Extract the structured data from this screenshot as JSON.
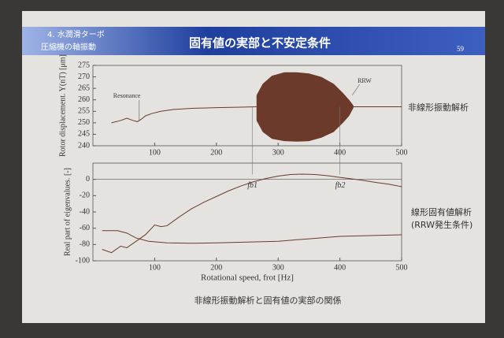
{
  "header": {
    "section": [
      "4. 水潤滑ターボ",
      "圧縮機の軸振動"
    ],
    "title": "固有値の実部と不安定条件",
    "page": "59"
  },
  "side_labels": [
    "非線形振動解析",
    "線形固有値解析",
    "(RRW発生条件)"
  ],
  "caption": "非線形振動解析と固有値の実部の関係",
  "chart_data": [
    {
      "type": "line",
      "y_label": "Rotor displacement. Y(nT) [μm]",
      "xlim": [
        0,
        500
      ],
      "xticks": [
        100,
        200,
        300,
        400,
        500
      ],
      "ylim": [
        240,
        275
      ],
      "yticks": [
        240,
        245,
        250,
        255,
        260,
        265,
        270,
        275
      ],
      "color": "#6b3a2a",
      "annotations": [
        {
          "text": "Resonance"
        },
        {
          "text": "RRW"
        }
      ],
      "series": [
        {
          "x": [
            30,
            45,
            55,
            65,
            72,
            78,
            85,
            95,
            110,
            130,
            160,
            200,
            240,
            265,
            340,
            420,
            450,
            480,
            500
          ],
          "values": [
            250,
            251,
            252,
            251,
            250.5,
            251.5,
            253,
            254,
            255,
            255.8,
            256.3,
            256.6,
            256.8,
            257,
            null,
            257,
            257,
            257,
            257
          ]
        },
        {
          "x": [
            265,
            275,
            290,
            310,
            330,
            350,
            370,
            390,
            405,
            415,
            422
          ],
          "values": [
            262,
            267,
            270.5,
            272,
            272,
            271.5,
            270,
            267,
            263,
            260,
            257.5
          ],
          "values_low": [
            251,
            246,
            243,
            242,
            241.8,
            242,
            243.5,
            246,
            250,
            253,
            256.5
          ]
        }
      ]
    },
    {
      "type": "line",
      "y_label": "Real part of eigenvalues. [-]",
      "x_label": "Rotational speed, frot [Hz]",
      "xlim": [
        0,
        500
      ],
      "xticks": [
        100,
        200,
        300,
        400,
        500
      ],
      "ylim": [
        -100,
        20
      ],
      "yticks": [
        -100,
        -80,
        -60,
        -40,
        -20,
        0
      ],
      "color": "#6b3a2a",
      "annotations": [
        {
          "text": "fb1",
          "x": 258
        },
        {
          "text": "fb2",
          "x": 400
        }
      ],
      "series": [
        {
          "x": [
            15,
            30,
            45,
            55,
            70,
            85,
            100,
            110,
            120,
            140,
            160,
            180,
            200,
            220,
            240,
            260,
            280,
            300,
            320,
            340,
            360,
            380,
            400,
            420,
            440,
            460,
            480,
            500
          ],
          "values": [
            -86,
            -90,
            -82,
            -84,
            -76,
            -68,
            -56,
            -58,
            -57,
            -46,
            -36,
            -28,
            -21,
            -14,
            -8,
            -3,
            1,
            4,
            6,
            6.5,
            6,
            4.5,
            2.5,
            0.5,
            -1.5,
            -4,
            -6,
            -9
          ]
        },
        {
          "x": [
            15,
            40,
            55,
            70,
            90,
            120,
            160,
            200,
            250,
            300,
            350,
            400,
            450,
            500
          ],
          "values": [
            -63,
            -63,
            -66,
            -72,
            -76,
            -78,
            -78.5,
            -78,
            -77,
            -76,
            -73,
            -70,
            -69,
            -68
          ]
        }
      ]
    }
  ]
}
